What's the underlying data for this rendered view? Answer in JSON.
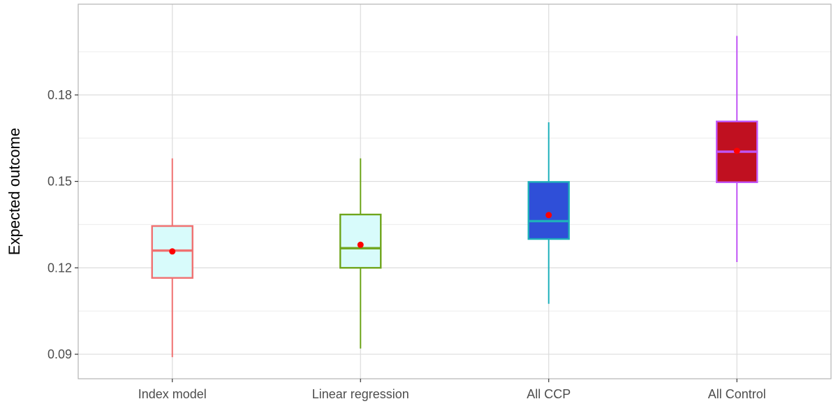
{
  "chart_data": {
    "type": "boxplot",
    "title": "",
    "xlabel": "",
    "ylabel": "Expected outcome",
    "ylim": [
      0.0815,
      0.2115
    ],
    "y_ticks": [
      0.09,
      0.12,
      0.15,
      0.18
    ],
    "y_tick_labels": [
      "0.09",
      "0.12",
      "0.15",
      "0.18"
    ],
    "grid": true,
    "legend": "none",
    "categories": [
      "Index model",
      "Linear regression",
      "All CCP",
      "All Control"
    ],
    "boxes": [
      {
        "category": "Index model",
        "whisker_low": 0.089,
        "q1": 0.1165,
        "median": 0.126,
        "q3": 0.1345,
        "whisker_high": 0.158,
        "mean": 0.1257,
        "line_color": "#f07070",
        "fill_color": "#d8fbfb"
      },
      {
        "category": "Linear regression",
        "whisker_low": 0.092,
        "q1": 0.12,
        "median": 0.1268,
        "q3": 0.1385,
        "whisker_high": 0.158,
        "mean": 0.128,
        "line_color": "#6fa51c",
        "fill_color": "#d8fbfb"
      },
      {
        "category": "All CCP",
        "whisker_low": 0.1075,
        "q1": 0.13,
        "median": 0.1362,
        "q3": 0.1498,
        "whisker_high": 0.1705,
        "mean": 0.1383,
        "line_color": "#1fb0bb",
        "fill_color": "#2f4fd8"
      },
      {
        "category": "All Control",
        "whisker_low": 0.122,
        "q1": 0.1497,
        "median": 0.1603,
        "q3": 0.1708,
        "whisker_high": 0.2005,
        "mean": 0.1606,
        "line_color": "#c055f5",
        "fill_color": "#c01020"
      }
    ],
    "mean_marker_color": "#ff0000"
  }
}
